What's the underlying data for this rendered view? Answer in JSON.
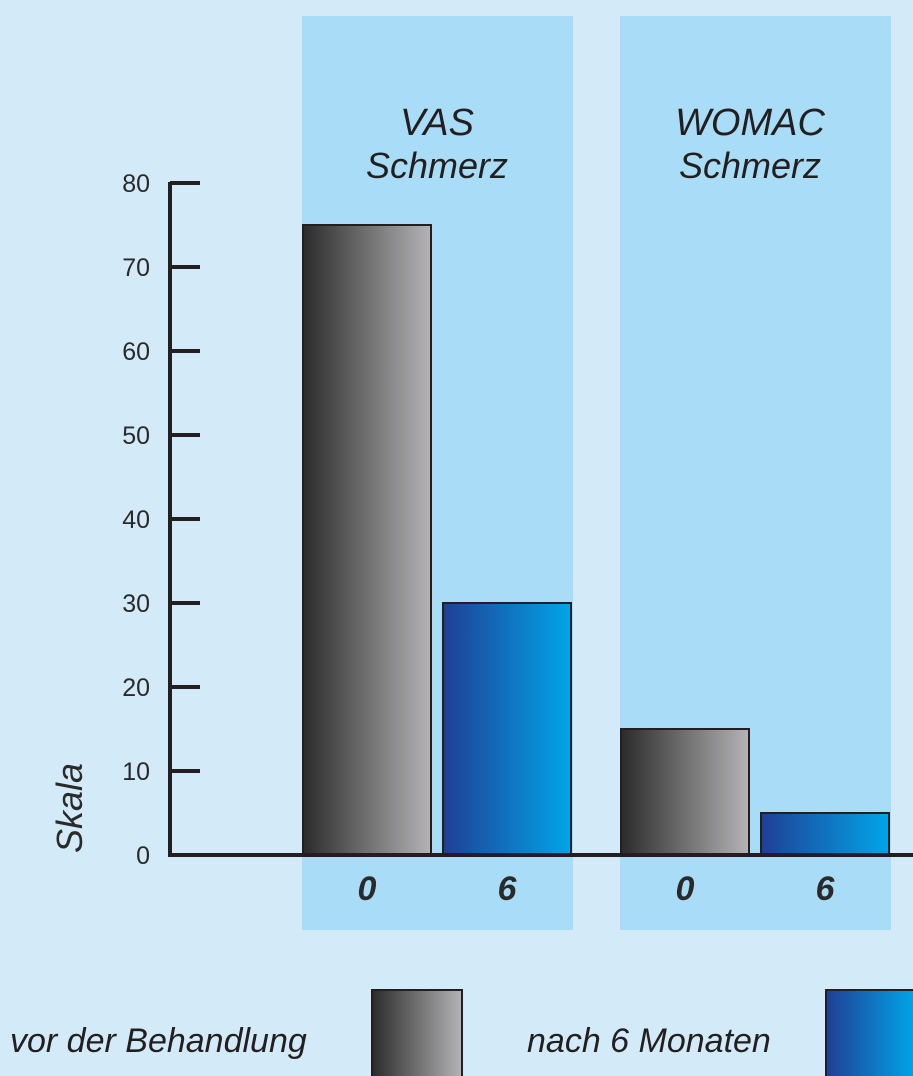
{
  "colors": {
    "background": "#d3ebf9",
    "panel": "#a9dcf7",
    "axis": "#231f20",
    "before_dark": "#2b2b2b",
    "before_light": "#b4b4b6",
    "after_dark": "#1f3f95",
    "after_light": "#00a6e8"
  },
  "chart_data": {
    "type": "bar",
    "ylabel": "Skala",
    "ylim": [
      0,
      80
    ],
    "yticks": [
      0,
      10,
      20,
      30,
      40,
      50,
      60,
      70,
      80
    ],
    "grid": false,
    "legend_position": "bottom",
    "groups": [
      {
        "title_line1": "VAS",
        "title_line2": "Schmerz",
        "bars": [
          {
            "label": "0",
            "series": "vor der Behandlung",
            "value": 75
          },
          {
            "label": "6",
            "series": "nach 6 Monaten",
            "value": 30
          }
        ]
      },
      {
        "title_line1": "WOMAC",
        "title_line2": "Schmerz",
        "bars": [
          {
            "label": "0",
            "series": "vor der Behandlung",
            "value": 15
          },
          {
            "label": "6",
            "series": "nach 6 Monaten",
            "value": 5
          }
        ]
      }
    ],
    "series": [
      {
        "name": "vor der Behandlung",
        "style": "before"
      },
      {
        "name": "nach 6 Monaten",
        "style": "after"
      }
    ]
  }
}
